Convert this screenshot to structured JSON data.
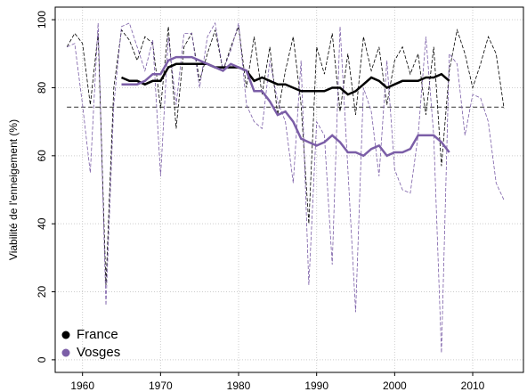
{
  "chart_data": {
    "type": "line",
    "y_label": "Viabilité de l'enneigement (%)",
    "x": [
      1958,
      1959,
      1960,
      1961,
      1962,
      1963,
      1964,
      1965,
      1966,
      1967,
      1968,
      1969,
      1970,
      1971,
      1972,
      1973,
      1974,
      1975,
      1976,
      1977,
      1978,
      1979,
      1980,
      1981,
      1982,
      1983,
      1984,
      1985,
      1986,
      1987,
      1988,
      1989,
      1990,
      1991,
      1992,
      1993,
      1994,
      1995,
      1996,
      1997,
      1998,
      1999,
      2000,
      2001,
      2002,
      2003,
      2004,
      2005,
      2006,
      2007,
      2008,
      2009,
      2010,
      2011,
      2012,
      2013,
      2014
    ],
    "smooth_x": [
      1965,
      1966,
      1967,
      1968,
      1969,
      1970,
      1971,
      1972,
      1973,
      1974,
      1975,
      1976,
      1977,
      1978,
      1979,
      1980,
      1981,
      1982,
      1983,
      1984,
      1985,
      1986,
      1987,
      1988,
      1989,
      1990,
      1991,
      1992,
      1993,
      1994,
      1995,
      1996,
      1997,
      1998,
      1999,
      2000,
      2001,
      2002,
      2003,
      2004,
      2005,
      2006,
      2007
    ],
    "series": [
      {
        "name": "France",
        "color": "#000000",
        "values": [
          92,
          96,
          93,
          75,
          96,
          22,
          80,
          97,
          94,
          88,
          95,
          93,
          74,
          98,
          68,
          92,
          96,
          82,
          90,
          97,
          85,
          92,
          98,
          80,
          95,
          78,
          92,
          72,
          85,
          95,
          75,
          40,
          92,
          84,
          96,
          73,
          90,
          72,
          95,
          85,
          92,
          75,
          88,
          92,
          84,
          90,
          72,
          92,
          57,
          85,
          97,
          90,
          80,
          87,
          95,
          90,
          74
        ],
        "smoothed": [
          83,
          82,
          82,
          81,
          82,
          82,
          86,
          87,
          87,
          87,
          87,
          87,
          86,
          86,
          86,
          86,
          85,
          82,
          83,
          82,
          81,
          81,
          80,
          79,
          79,
          79,
          79,
          80,
          80,
          78,
          79,
          81,
          83,
          82,
          80,
          81,
          82,
          82,
          82,
          83,
          83,
          84,
          82
        ]
      },
      {
        "name": "Vosges",
        "color": "#7b5ea7",
        "values": [
          92,
          93,
          75,
          55,
          99,
          16,
          75,
          98,
          99,
          92,
          85,
          94,
          54,
          95,
          75,
          96,
          96,
          80,
          95,
          99,
          85,
          91,
          99,
          75,
          70,
          68,
          88,
          76,
          70,
          52,
          88,
          22,
          70,
          66,
          28,
          98,
          56,
          14,
          80,
          73,
          54,
          88,
          56,
          50,
          49,
          66,
          95,
          66,
          2,
          90,
          87,
          66,
          78,
          77,
          70,
          52,
          47
        ],
        "smoothed": [
          81,
          81,
          81,
          82,
          84,
          84,
          88,
          89,
          89,
          89,
          88,
          87,
          86,
          85,
          87,
          86,
          85,
          79,
          79,
          76,
          72,
          73,
          70,
          65,
          64,
          63,
          64,
          66,
          64,
          61,
          61,
          60,
          62,
          63,
          60,
          61,
          61,
          62,
          66,
          66,
          66,
          64,
          61
        ]
      }
    ],
    "hline": 74.3,
    "xlim": [
      1956.5,
      2016.5
    ],
    "ylim": [
      -3.7,
      103.7
    ],
    "xticks": [
      1960,
      1970,
      1980,
      1990,
      2000,
      2010
    ],
    "yticks": [
      0,
      20,
      40,
      60,
      80,
      100
    ],
    "grid": true,
    "legend": "bottom-left"
  }
}
